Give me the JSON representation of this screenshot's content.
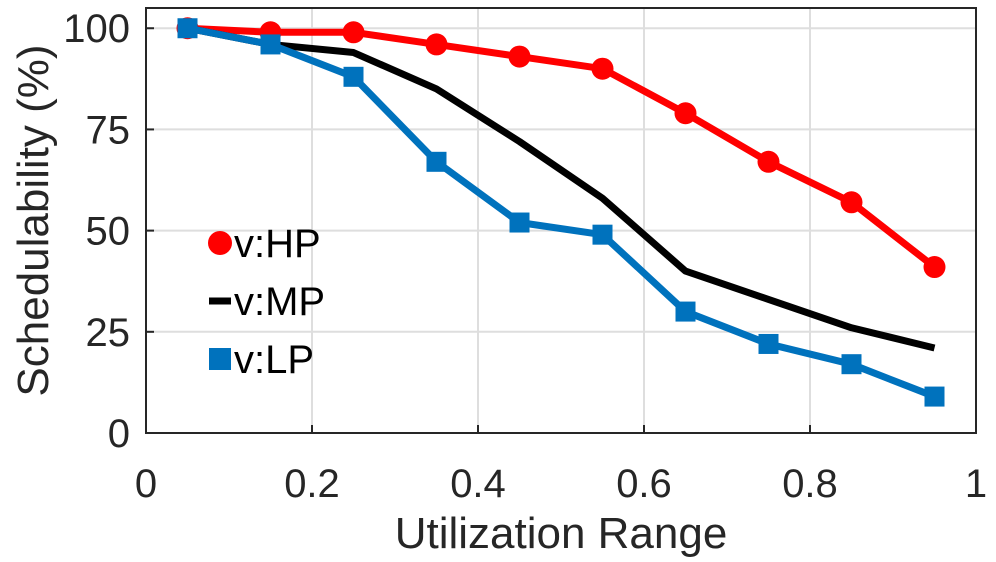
{
  "chart_data": {
    "type": "line",
    "title": "",
    "xlabel": "Utilization Range",
    "ylabel": "Schedulability (%)",
    "xlim": [
      0,
      1
    ],
    "ylim": [
      0,
      105
    ],
    "x_ticks": [
      0,
      0.2,
      0.4,
      0.6,
      0.8,
      1
    ],
    "x_tick_labels": [
      "0",
      "0.2",
      "0.4",
      "0.6",
      "0.8",
      "1"
    ],
    "y_ticks": [
      0,
      25,
      50,
      75,
      100
    ],
    "y_tick_labels": [
      "0",
      "25",
      "50",
      "75",
      "100"
    ],
    "grid": true,
    "legend_position": "left",
    "x": [
      0.05,
      0.15,
      0.25,
      0.35,
      0.45,
      0.55,
      0.65,
      0.75,
      0.85,
      0.95
    ],
    "series": [
      {
        "name": "v:HP",
        "color": "#ff0000",
        "marker": "circle",
        "values": [
          100,
          99,
          99,
          96,
          93,
          90,
          79,
          67,
          57,
          41
        ]
      },
      {
        "name": "v:MP",
        "color": "#000000",
        "marker": "none",
        "values": [
          100,
          96,
          94,
          85,
          72,
          58,
          40,
          33,
          26,
          21
        ]
      },
      {
        "name": "v:LP",
        "color": "#0072bd",
        "marker": "square",
        "values": [
          100,
          96,
          88,
          67,
          52,
          49,
          30,
          22,
          17,
          9
        ]
      }
    ]
  }
}
